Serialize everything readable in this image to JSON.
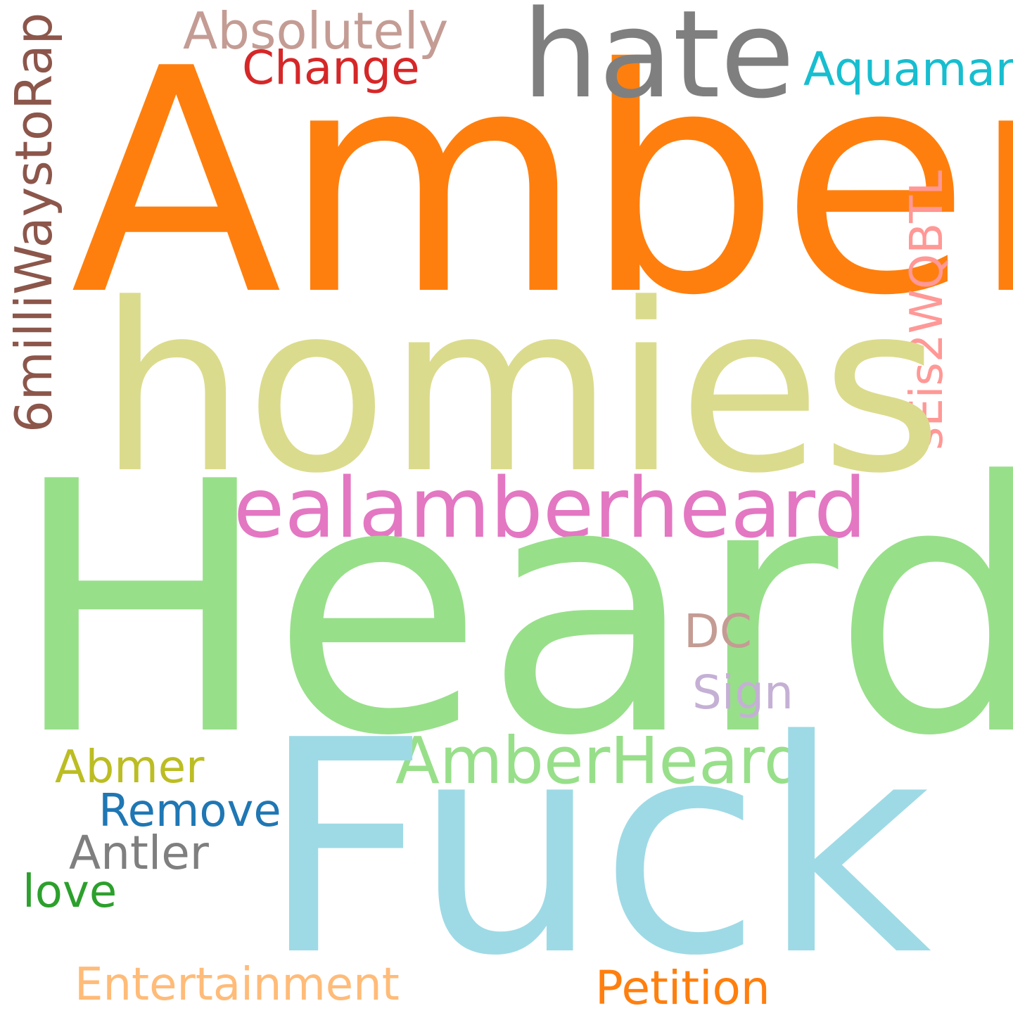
{
  "words": {
    "amber": {
      "text": "Amber",
      "color": "#ff7f0e"
    },
    "heard": {
      "text": "Heard",
      "color": "#98df8a"
    },
    "fuck": {
      "text": "Fuck",
      "color": "#9edae5"
    },
    "homies": {
      "text": "homies",
      "color": "#dbdb8d"
    },
    "hate": {
      "text": "hate",
      "color": "#7f7f7f"
    },
    "realamberheard": {
      "text": "realamberheard",
      "color": "#e377c2"
    },
    "amberheard": {
      "text": "AmberHeard",
      "color": "#98df8a"
    },
    "absolutely": {
      "text": "Absolutely",
      "color": "#c49c94"
    },
    "change": {
      "text": "Change",
      "color": "#d62728"
    },
    "aquaman": {
      "text": "Aquaman",
      "color": "#17becf"
    },
    "sixmilli": {
      "text": "6milliWaystoRap",
      "color": "#8c564b"
    },
    "seis": {
      "text": "sEis2WQBTL",
      "color": "#ff9896"
    },
    "dc": {
      "text": "DC",
      "color": "#c49c94"
    },
    "sign": {
      "text": "Sign",
      "color": "#c5b0d5"
    },
    "abmer": {
      "text": "Abmer",
      "color": "#bcbd22"
    },
    "remove": {
      "text": "Remove",
      "color": "#1f77b4"
    },
    "antler": {
      "text": "Antler",
      "color": "#7f7f7f"
    },
    "love": {
      "text": "love",
      "color": "#2ca02c"
    },
    "entertainment": {
      "text": "Entertainment",
      "color": "#ffbb78"
    },
    "petition": {
      "text": "Petition",
      "color": "#ff7f0e"
    }
  }
}
